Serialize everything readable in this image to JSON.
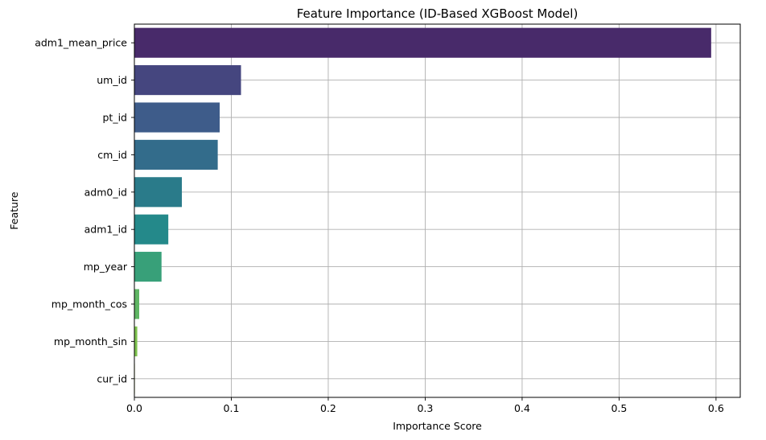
{
  "chart_data": {
    "type": "bar",
    "orientation": "horizontal",
    "title": "Feature Importance (ID-Based XGBoost Model)",
    "xlabel": "Importance Score",
    "ylabel": "Feature",
    "xlim": [
      0,
      0.625
    ],
    "xticks": [
      0.0,
      0.1,
      0.2,
      0.3,
      0.4,
      0.5,
      0.6
    ],
    "xtick_labels": [
      "0.0",
      "0.1",
      "0.2",
      "0.3",
      "0.4",
      "0.5",
      "0.6"
    ],
    "grid": true,
    "categories": [
      "adm1_mean_price",
      "um_id",
      "pt_id",
      "cm_id",
      "adm0_id",
      "adm1_id",
      "mp_year",
      "mp_month_cos",
      "mp_month_sin",
      "cur_id"
    ],
    "values": [
      0.595,
      0.11,
      0.088,
      0.086,
      0.049,
      0.035,
      0.028,
      0.005,
      0.003,
      0.0005
    ],
    "colors": [
      "#482A6A",
      "#45467F",
      "#3E5C8A",
      "#336C8B",
      "#2A7B8A",
      "#24898A",
      "#38A079",
      "#5FB564",
      "#7EC24E",
      "#A2CF3C"
    ]
  }
}
